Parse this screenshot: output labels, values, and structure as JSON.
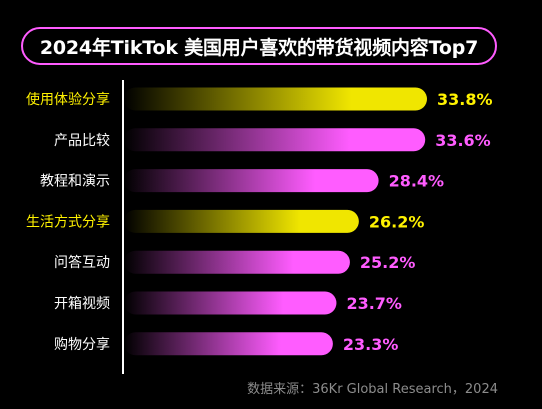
{
  "chart_data": {
    "type": "bar",
    "orientation": "horizontal",
    "title": "2024年TikTok 美国用户喜欢的带货视频内容Top7",
    "categories": [
      "使用体验分享",
      "产品比较",
      "教程和演示",
      "生活方式分享",
      "问答互动",
      "开箱视频",
      "购物分享"
    ],
    "values": [
      33.8,
      33.6,
      28.4,
      26.2,
      25.2,
      23.7,
      23.3
    ],
    "value_labels": [
      "33.8%",
      "33.6%",
      "28.4%",
      "26.2%",
      "25.2%",
      "23.7%",
      "23.3%"
    ],
    "highlight": [
      true,
      false,
      false,
      true,
      false,
      false,
      false
    ],
    "colors": {
      "highlight": "#f0e600",
      "default": "#ff5cff",
      "highlight_label": "#fff200",
      "default_label": "#ff5cff",
      "title_border": "#ff5cff",
      "axis": "#ffffff",
      "background": "#000000"
    },
    "source": "数据来源：36Kr Global Research，2024",
    "grid": false,
    "legend": "none"
  }
}
